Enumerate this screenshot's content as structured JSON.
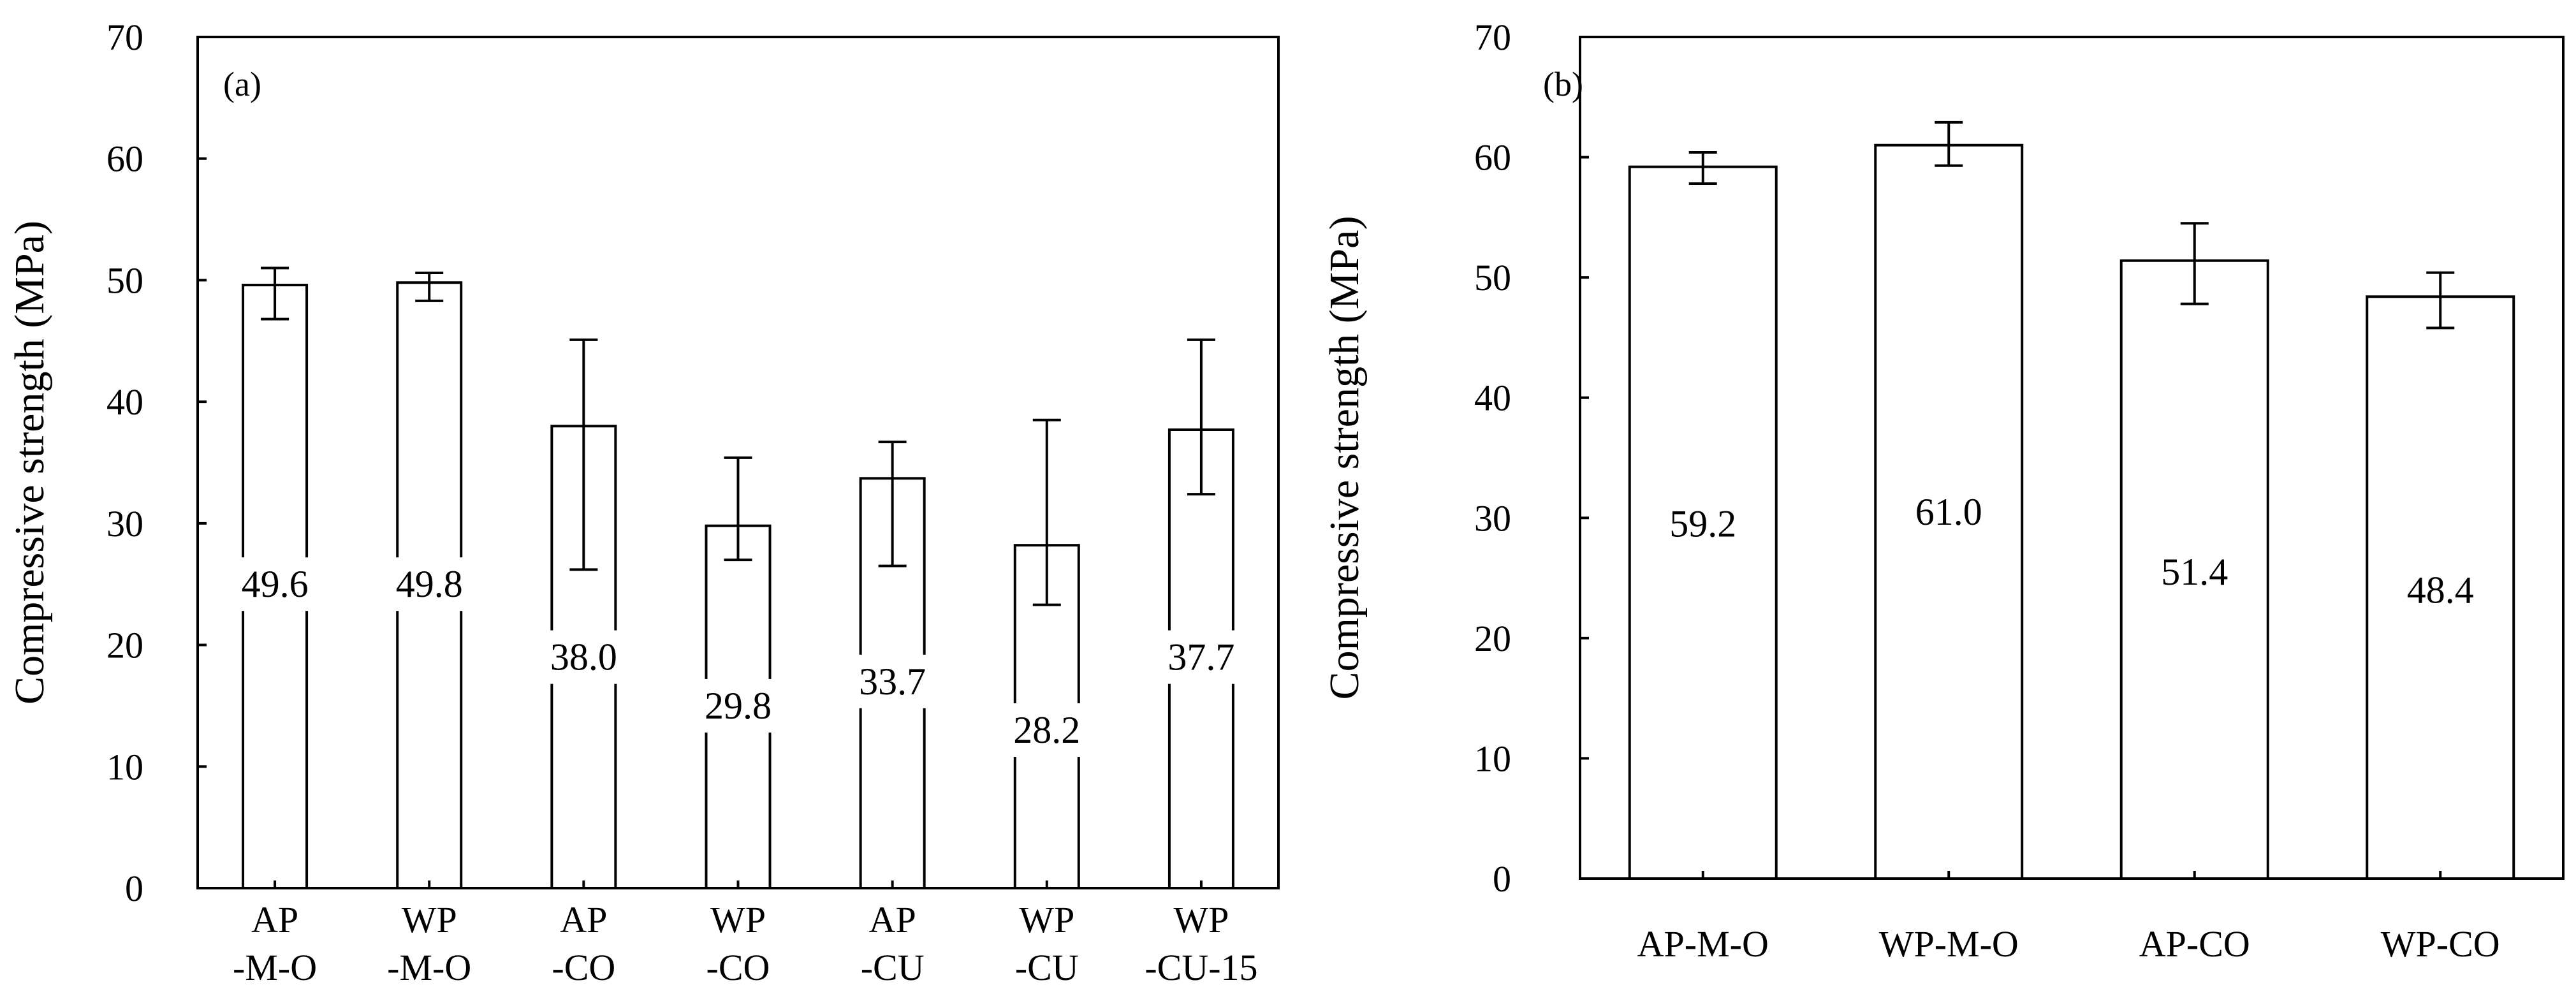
{
  "chart_data": [
    {
      "type": "bar",
      "panel_label": "(a)",
      "ylabel": "Compressive  strength (MPa)",
      "xlabel": "",
      "ylim": [
        0,
        70
      ],
      "yticks": [
        0,
        10,
        20,
        30,
        40,
        50,
        60,
        70
      ],
      "categories": [
        [
          "AP",
          "-M-O"
        ],
        [
          "WP",
          "-M-O"
        ],
        [
          "AP",
          "-CO"
        ],
        [
          "WP",
          "-CO"
        ],
        [
          "AP",
          "-CU"
        ],
        [
          "WP",
          "-CU"
        ],
        [
          "WP",
          "-CU-15"
        ]
      ],
      "values": [
        49.6,
        49.8,
        38.0,
        29.8,
        33.7,
        28.2,
        37.7
      ],
      "value_labels": [
        "49.6",
        "49.8",
        "38.0",
        "29.8",
        "33.7",
        "28.2",
        "37.7"
      ],
      "error_low": [
        46.8,
        48.3,
        26.2,
        27.0,
        26.5,
        23.3,
        32.4
      ],
      "error_high": [
        51.0,
        50.6,
        45.1,
        35.4,
        36.7,
        38.5,
        45.1
      ],
      "label_at": [
        25,
        25,
        19,
        15,
        17,
        13,
        19
      ]
    },
    {
      "type": "bar",
      "panel_label": "(b)",
      "ylabel": "Compressive  strength (MPa)",
      "xlabel": "",
      "ylim": [
        0,
        70
      ],
      "yticks": [
        0,
        10,
        20,
        30,
        40,
        50,
        60,
        70
      ],
      "categories": [
        [
          "AP-M-O"
        ],
        [
          "WP-M-O"
        ],
        [
          "AP-CO"
        ],
        [
          "WP-CO"
        ]
      ],
      "values": [
        59.2,
        61.0,
        51.4,
        48.4
      ],
      "value_labels": [
        "59.2",
        "61.0",
        "51.4",
        "48.4"
      ],
      "error_low": [
        57.8,
        59.3,
        47.8,
        45.8
      ],
      "error_high": [
        60.4,
        62.9,
        54.5,
        50.4
      ],
      "label_at": [
        29.5,
        30.5,
        25.5,
        24.0
      ]
    }
  ]
}
